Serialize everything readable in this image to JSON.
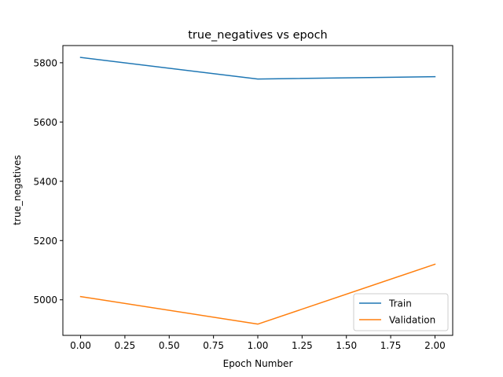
{
  "chart_data": {
    "type": "line",
    "title": "true_negatives vs epoch",
    "xlabel": "Epoch Number",
    "ylabel": "true_negatives",
    "x": [
      0,
      1,
      2
    ],
    "series": [
      {
        "name": "Train",
        "color": "#1f77b4",
        "values": [
          5818,
          5745,
          5753
        ]
      },
      {
        "name": "Validation",
        "color": "#ff7f0e",
        "values": [
          5011,
          4918,
          5120
        ]
      }
    ],
    "xlim": [
      -0.1,
      2.1
    ],
    "ylim": [
      4880,
      5858
    ],
    "xticks": [
      0.0,
      0.25,
      0.5,
      0.75,
      1.0,
      1.25,
      1.5,
      1.75,
      2.0
    ],
    "xtick_labels": [
      "0.00",
      "0.25",
      "0.50",
      "0.75",
      "1.00",
      "1.25",
      "1.50",
      "1.75",
      "2.00"
    ],
    "yticks": [
      5000,
      5200,
      5400,
      5600,
      5800
    ],
    "ytick_labels": [
      "5000",
      "5200",
      "5400",
      "5600",
      "5800"
    ],
    "grid": false,
    "legend_position": "lower-right"
  }
}
